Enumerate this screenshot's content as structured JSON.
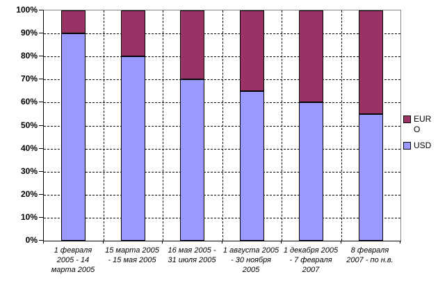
{
  "chart_data": {
    "type": "bar",
    "subtype": "stacked-100-percent",
    "title": "",
    "xlabel": "",
    "ylabel": "",
    "ylim": [
      0,
      100
    ],
    "grid": "dashed horizontal and vertical, solid gray top/right plot border",
    "y_tick_labels": [
      "0%",
      "10%",
      "20%",
      "30%",
      "40%",
      "50%",
      "60%",
      "70%",
      "80%",
      "90%",
      "100%"
    ],
    "categories": [
      "1 февраля 2005 - 14 марта 2005",
      "15 марта 2005 - 15 мая 2005",
      "16 мая 2005 - 31 июля 2005",
      "1 августа 2005 - 30 ноября 2005",
      "1 декабря 2005 - 7 февраля 2007",
      "8 февраля 2007 - по н.в."
    ],
    "category_label_lines": [
      [
        "1 февраля",
        "2005 - 14",
        "марта 2005"
      ],
      [
        "15 марта 2005",
        "- 15 мая 2005"
      ],
      [
        "16 мая 2005 -",
        "31 июля 2005"
      ],
      [
        "1 августа 2005",
        "- 30 ноября",
        "2005"
      ],
      [
        "1 декабря 2005",
        "- 7 февраля",
        "2007"
      ],
      [
        "8 февраля",
        "2007 - по н.в."
      ]
    ],
    "series": [
      {
        "name": "USD",
        "color": "#9999FF",
        "values": [
          90,
          80,
          70,
          65,
          60,
          55
        ]
      },
      {
        "name": "EURO",
        "color": "#993366",
        "values": [
          10,
          20,
          30,
          35,
          40,
          45
        ]
      }
    ],
    "legend": {
      "position": "right",
      "items": [
        {
          "label": "EURO",
          "color": "#993366"
        },
        {
          "label": "USD",
          "color": "#9999FF"
        }
      ]
    }
  },
  "colors": {
    "background": "#FFFFFF",
    "axis": "#000000",
    "plot_border": "#848484",
    "gridline": "#000000",
    "usd_fill": "#9999FF",
    "euro_fill": "#993366"
  }
}
